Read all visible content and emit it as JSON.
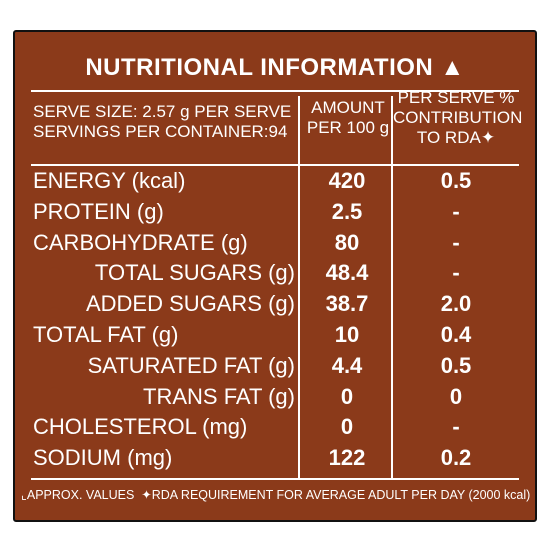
{
  "title": "NUTRITIONAL INFORMATION ▲",
  "header": {
    "serve_size": "SERVE SIZE: 2.57 g PER SERVE",
    "servings": "SERVINGS PER CONTAINER:94",
    "amount": [
      "AMOUNT",
      "PER 100 g"
    ],
    "rda": [
      "PER SERVE %",
      "CONTRIBUTION",
      "TO RDA✦"
    ]
  },
  "rows": [
    [
      "ENERGY (kcal)",
      "420",
      "0.5"
    ],
    [
      "PROTEIN (g)",
      "2.5",
      "-"
    ],
    [
      "CARBOHYDRATE (g)",
      "80",
      "-"
    ],
    [
      "TOTAL SUGARS (g)",
      "48.4",
      "-"
    ],
    [
      "ADDED SUGARS (g)",
      "38.7",
      "2.0"
    ],
    [
      "TOTAL FAT (g)",
      "10",
      "0.4"
    ],
    [
      "SATURATED FAT (g)",
      "4.4",
      "0.5"
    ],
    [
      "TRANS FAT (g)",
      "0",
      "0"
    ],
    [
      "CHOLESTEROL (mg)",
      "0",
      "-"
    ],
    [
      "SODIUM (mg)",
      "122",
      "0.2"
    ]
  ],
  "footer": [
    "⌞APPROX. VALUES",
    "✦RDA REQUIREMENT FOR AVERAGE ADULT PER DAY (2000 kcal)"
  ]
}
